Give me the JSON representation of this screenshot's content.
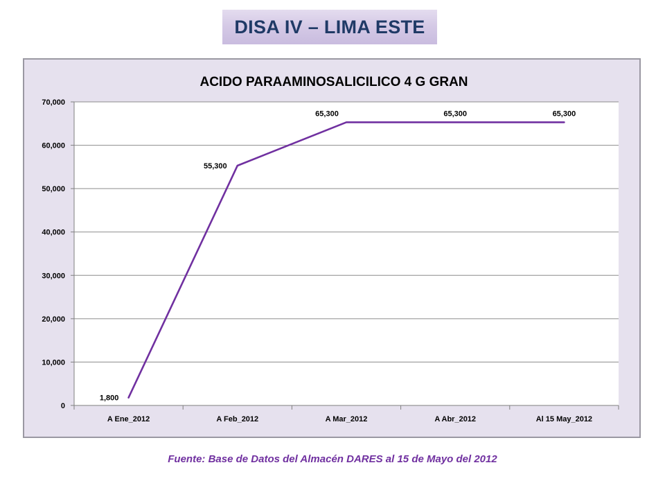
{
  "header": {
    "title": "DISA IV – LIMA ESTE"
  },
  "chart_data": {
    "type": "line",
    "title": "ACIDO PARAAMINOSALICILICO 4 G GRAN",
    "xlabel": "",
    "ylabel": "",
    "categories": [
      "A Ene_2012",
      "A Feb_2012",
      "A Mar_2012",
      "A Abr_2012",
      "Al 15 May_2012"
    ],
    "series": [
      {
        "values": [
          1800,
          55300,
          65300,
          65300,
          65300
        ],
        "color": "#7030a0"
      }
    ],
    "data_labels": [
      "1,800",
      "55,300",
      "65,300",
      "65,300",
      "65,300"
    ],
    "ylim": [
      0,
      70000
    ],
    "y_ticks": [
      0,
      10000,
      20000,
      30000,
      40000,
      50000,
      60000,
      70000
    ],
    "y_tick_labels": [
      "0",
      "10,000",
      "20,000",
      "30,000",
      "40,000",
      "50,000",
      "60,000",
      "70,000"
    ],
    "grid": true,
    "legend": "none",
    "colors": {
      "line": "#7030a0",
      "plot_background": "#ffffff",
      "chart_background": "#e6e1ee",
      "gridline": "#8c8c8c"
    }
  },
  "footer": {
    "source": "Fuente: Base de Datos del Almacén DARES al 15 de Mayo del 2012"
  }
}
